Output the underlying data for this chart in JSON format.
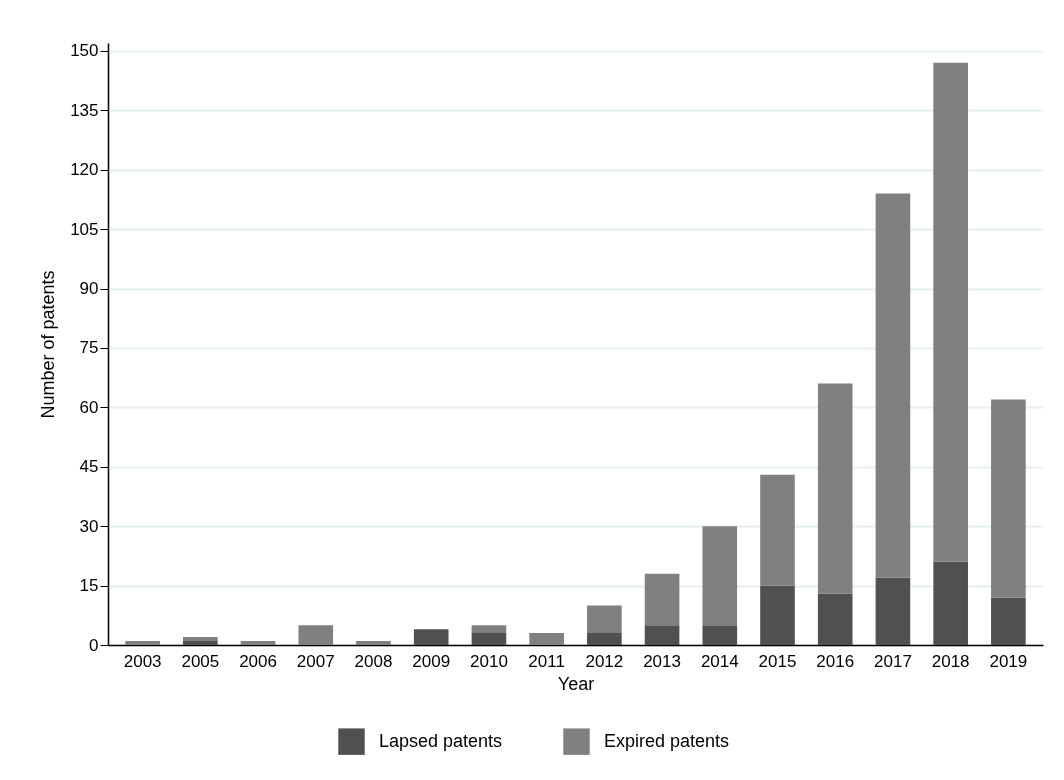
{
  "chart_data": {
    "type": "bar",
    "stacked": true,
    "xlabel": "Year",
    "ylabel": "Number of patents",
    "categories": [
      "2003",
      "2005",
      "2006",
      "2007",
      "2008",
      "2009",
      "2010",
      "2011",
      "2012",
      "2013",
      "2014",
      "2015",
      "2016",
      "2017",
      "2018",
      "2019"
    ],
    "series": [
      {
        "name": "Lapsed patents",
        "color": "#505050",
        "values": [
          0,
          1,
          0,
          0,
          0,
          4,
          3,
          0,
          3,
          5,
          5,
          15,
          13,
          17,
          21,
          12
        ]
      },
      {
        "name": "Expired patents",
        "color": "#808080",
        "values": [
          1,
          1,
          1,
          5,
          1,
          0,
          2,
          3,
          7,
          13,
          25,
          28,
          53,
          97,
          126,
          50
        ]
      }
    ],
    "ylim": [
      0,
      152
    ],
    "yticks": [
      0,
      15,
      30,
      45,
      60,
      75,
      90,
      105,
      120,
      135,
      150
    ],
    "grid": "y",
    "legend": "bottom"
  }
}
